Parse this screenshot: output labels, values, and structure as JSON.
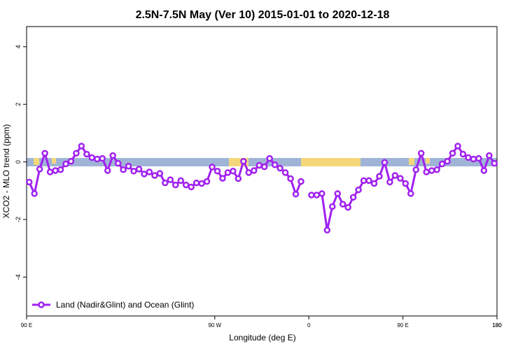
{
  "chart_data": {
    "type": "line",
    "title": "2.5N-7.5N May (Ver 10)   2015-01-01 to 2020-12-18",
    "x_label": "Longitude (deg E)",
    "y_label": "XCO2 - MLO trend (ppm)",
    "x": [
      -267.5,
      -262.5,
      -257.5,
      -252.5,
      -247.5,
      -242.5,
      -237.5,
      -232.5,
      -227.5,
      -222.5,
      -217.5,
      -212.5,
      -207.5,
      -202.5,
      -197.5,
      -192.5,
      -187.5,
      -182.5,
      -177.5,
      -172.5,
      -167.5,
      -162.5,
      -157.5,
      -152.5,
      -147.5,
      -142.5,
      -137.5,
      -132.5,
      -127.5,
      -122.5,
      -117.5,
      -112.5,
      -107.5,
      -102.5,
      -97.5,
      -92.5,
      -87.5,
      -82.5,
      -77.5,
      -72.5,
      -67.5,
      -62.5,
      -57.5,
      -52.5,
      -47.5,
      -42.5,
      -37.5,
      -32.5,
      -27.5,
      -22.5,
      -17.5,
      -12.5,
      -7.5,
      -2.5,
      2.5,
      7.5,
      12.5,
      17.5,
      22.5,
      27.5,
      32.5,
      37.5,
      42.5,
      47.5,
      52.5,
      57.5,
      62.5,
      67.5,
      72.5,
      77.5,
      82.5,
      87.5,
      92.5,
      97.5,
      102.5,
      107.5,
      112.5,
      117.5,
      122.5,
      127.5,
      132.5,
      137.5,
      142.5,
      147.5,
      152.5,
      157.5,
      162.5,
      167.5,
      172.5,
      177.5
    ],
    "series": [
      {
        "name": "Land (Nadir&Glint) and Ocean (Glint)",
        "color": "#a020f0",
        "values": [
          -0.7,
          -1.1,
          -0.25,
          0.3,
          -0.35,
          -0.3,
          -0.27,
          -0.07,
          0.02,
          0.3,
          0.55,
          0.27,
          0.15,
          0.1,
          0.12,
          -0.3,
          0.22,
          -0.05,
          -0.27,
          -0.15,
          -0.32,
          -0.25,
          -0.42,
          -0.35,
          -0.47,
          -0.4,
          -0.73,
          -0.62,
          -0.8,
          -0.65,
          -0.8,
          -0.87,
          -0.73,
          -0.75,
          -0.68,
          -0.18,
          -0.32,
          -0.57,
          -0.37,
          -0.32,
          -0.58,
          0.02,
          -0.37,
          -0.3,
          -0.12,
          -0.17,
          0.12,
          -0.1,
          -0.22,
          -0.37,
          -0.58,
          -1.12,
          -0.68,
          null,
          -1.15,
          -1.15,
          -1.1,
          -2.37,
          -1.55,
          -1.1,
          -1.47,
          -1.58,
          -1.23,
          -0.97,
          -0.65,
          -0.65,
          -0.75,
          -0.5,
          -0.02,
          -0.7,
          -0.47,
          -0.57,
          -0.75,
          -1.1,
          -0.27,
          0.3,
          -0.35,
          -0.3,
          -0.27,
          -0.07,
          0.02,
          0.3,
          0.55,
          0.27,
          0.15,
          0.1,
          0.12,
          -0.3,
          0.22,
          -0.05
        ]
      }
    ],
    "xlim": [
      -270,
      180
    ],
    "xticks": [
      {
        "value": -270,
        "label": "90 E"
      },
      180,
      {
        "value": -90,
        "label": "90 W"
      },
      0,
      {
        "value": 90,
        "label": "90 E"
      },
      180
    ],
    "ylim": [
      -5.35,
      4.7
    ],
    "yticks": [
      -4,
      -2,
      0,
      2,
      4
    ],
    "legend": "bottom-left"
  }
}
